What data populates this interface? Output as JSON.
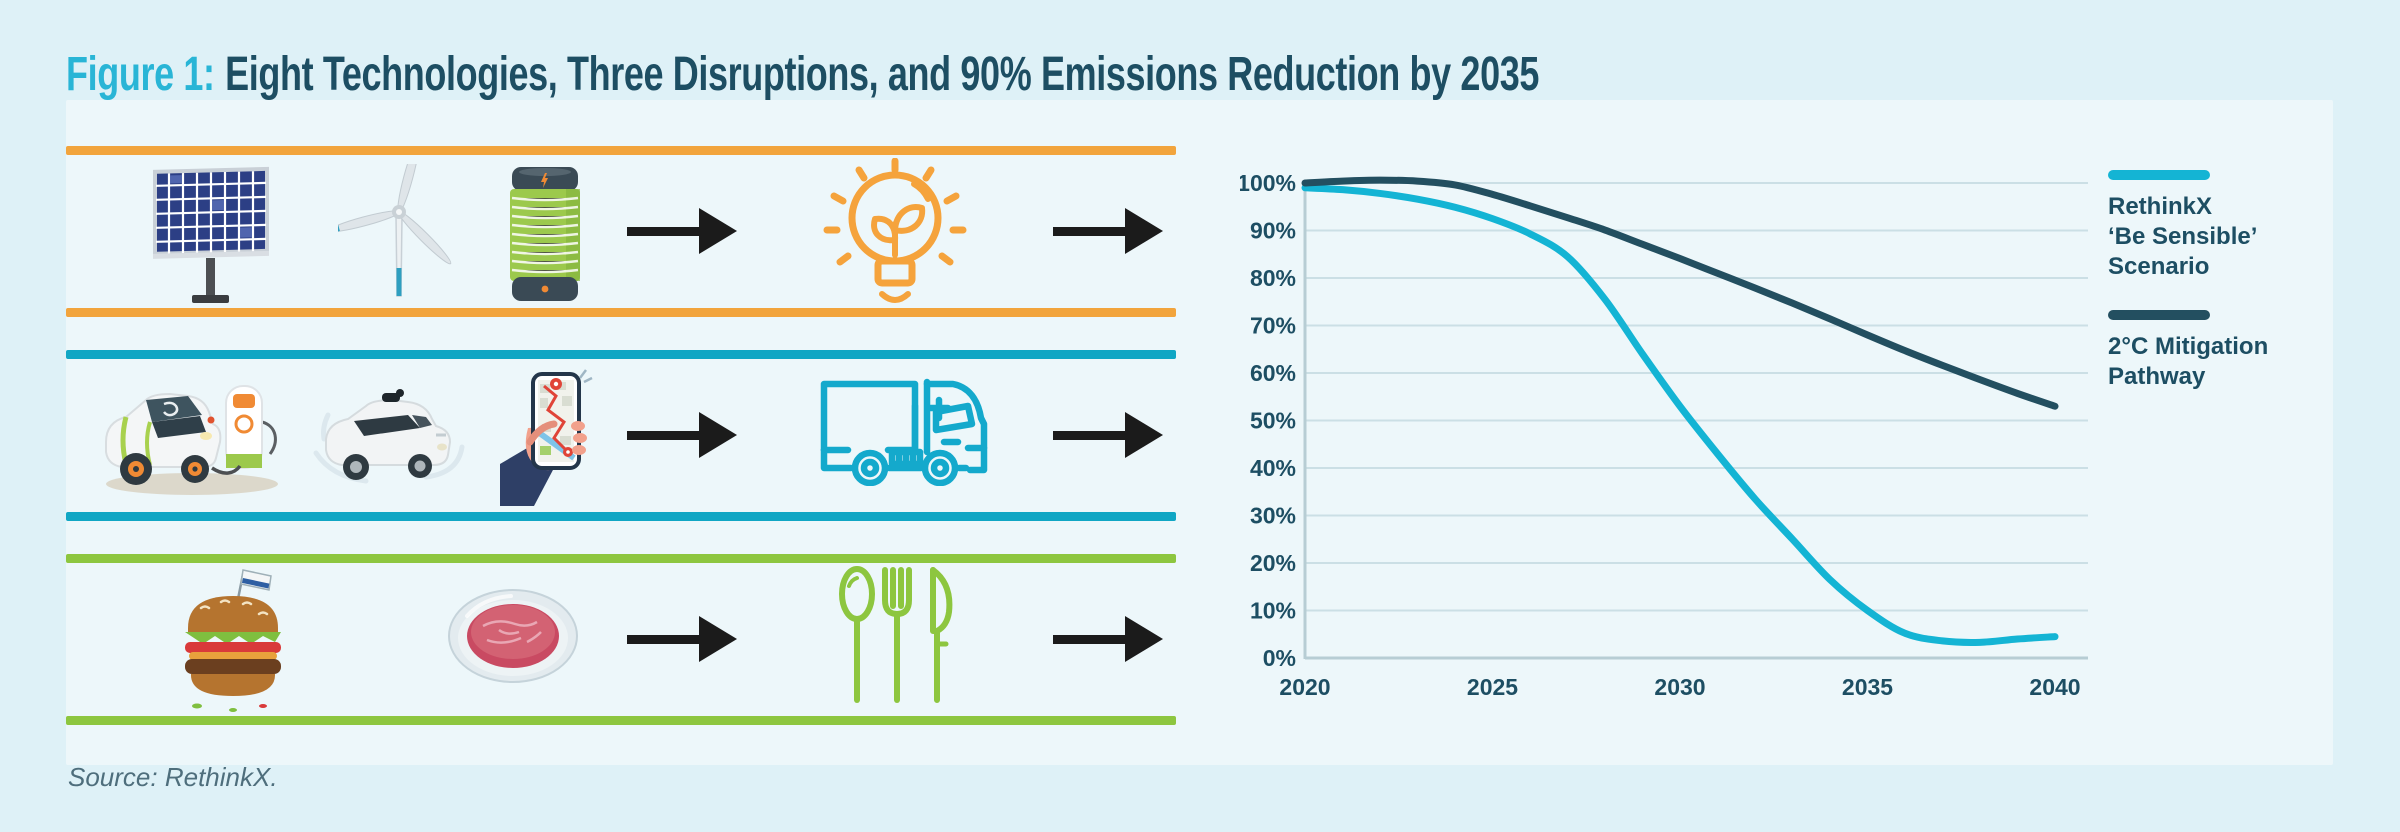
{
  "page": {
    "background": "#DEF1F7",
    "card_background": "#EDF7FA"
  },
  "title": {
    "prefix": "Figure 1:",
    "prefix_color": "#29B5D6",
    "text": "Eight Technologies, Three Disruptions, and 90% Emissions Reduction by 2035",
    "text_color": "#1D4E63"
  },
  "rows": [
    {
      "id": "energy",
      "bar_color": "#F2A43C",
      "input_icons": [
        "solar-panel-icon",
        "wind-turbine-icon",
        "battery-icon"
      ],
      "output_icon": "lightbulb-sprout-icon",
      "arrow_color": "#1b1b1b"
    },
    {
      "id": "transport",
      "bar_color": "#10A6C4",
      "input_icons": [
        "ev-charging-icon",
        "autonomous-car-icon",
        "ride-hailing-phone-icon"
      ],
      "output_icon": "truck-icon",
      "arrow_color": "#1b1b1b"
    },
    {
      "id": "food",
      "bar_color": "#8DC63F",
      "input_icons": [
        "burger-icon",
        "cultured-meat-icon"
      ],
      "output_icon": "cutlery-icon",
      "arrow_color": "#1b1b1b"
    }
  ],
  "chart_data": {
    "type": "line",
    "title": "",
    "xlabel": "",
    "ylabel": "",
    "grid": true,
    "legend_position": "right",
    "ylim": [
      0,
      100
    ],
    "x_range": [
      2020,
      2040
    ],
    "x": [
      2020,
      2021,
      2022,
      2023,
      2024,
      2025,
      2026,
      2027,
      2028,
      2029,
      2030,
      2031,
      2032,
      2033,
      2034,
      2035,
      2036,
      2037,
      2038,
      2039,
      2040
    ],
    "series": [
      {
        "name": "RethinkX ‘Be Sensible’ Scenario",
        "color": "#14B4D4",
        "values": [
          99,
          98.6,
          97.8,
          96.6,
          94.9,
          92.5,
          89.3,
          84.5,
          75.5,
          64,
          53,
          43,
          33.5,
          25,
          16.5,
          10,
          5.2,
          3.6,
          3.3,
          4,
          4.5
        ]
      },
      {
        "name": "2°C Mitigation Pathway",
        "color": "#234F60",
        "values": [
          100,
          100.4,
          100.6,
          100.4,
          99.6,
          97.6,
          95.2,
          92.7,
          90.1,
          87.1,
          84.1,
          81,
          77.9,
          74.7,
          71.4,
          68,
          64.7,
          61.6,
          58.6,
          55.7,
          53
        ]
      }
    ],
    "y_ticks": [
      {
        "value": 0,
        "label": "0%"
      },
      {
        "value": 10,
        "label": "10%"
      },
      {
        "value": 20,
        "label": "20%"
      },
      {
        "value": 30,
        "label": "30%"
      },
      {
        "value": 40,
        "label": "40%"
      },
      {
        "value": 50,
        "label": "50%"
      },
      {
        "value": 60,
        "label": "60%"
      },
      {
        "value": 70,
        "label": "70%"
      },
      {
        "value": 80,
        "label": "80%"
      },
      {
        "value": 90,
        "label": "90%"
      },
      {
        "value": 100,
        "label": "100%"
      }
    ],
    "x_ticks": [
      {
        "value": 2020,
        "label": "2020"
      },
      {
        "value": 2025,
        "label": "2025"
      },
      {
        "value": 2030,
        "label": "2030"
      },
      {
        "value": 2035,
        "label": "2035"
      },
      {
        "value": 2040,
        "label": "2040"
      }
    ],
    "gridline_color": "#CBDFE5",
    "axis_color": "#B7CDD4",
    "tick_label_color": "#1D4E63"
  },
  "legend": {
    "items": [
      {
        "color": "#14B4D4",
        "lines": [
          "RethinkX",
          "‘Be Sensible’",
          "Scenario"
        ]
      },
      {
        "color": "#234F60",
        "lines": [
          "2°C Mitigation",
          "Pathway"
        ]
      }
    ]
  },
  "source": {
    "text": "Source: RethinkX."
  }
}
